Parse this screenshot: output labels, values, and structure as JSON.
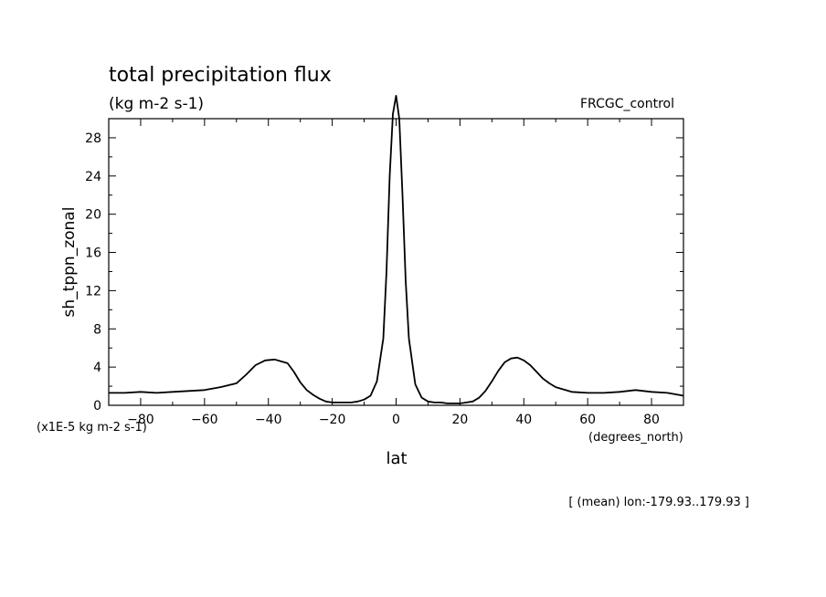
{
  "chart_data": {
    "type": "line",
    "title": "total precipitation flux",
    "subtitle": "(kg m-2 s-1)",
    "run_label": "FRCGC_control",
    "ylabel": "sh_tppn_zonal",
    "y_units": "(x1E-5 kg m-2 s-1)",
    "xlabel": "lat",
    "x_units": "(degrees_north)",
    "footnote": "[ (mean) lon:-179.93..179.93 ]",
    "xlim": [
      -90,
      90
    ],
    "ylim": [
      0,
      30
    ],
    "x_ticks": [
      -80,
      -60,
      -40,
      -20,
      0,
      20,
      40,
      60,
      80
    ],
    "y_ticks": [
      0,
      4,
      8,
      12,
      16,
      20,
      24,
      28
    ],
    "grid": false,
    "series": [
      {
        "x": [
          -90,
          -85,
          -80,
          -75,
          -70,
          -65,
          -60,
          -55,
          -50,
          -47,
          -44,
          -41,
          -38,
          -36,
          -34,
          -32,
          -30,
          -28,
          -26,
          -24,
          -22,
          -20,
          -18,
          -16,
          -14,
          -12,
          -10,
          -8,
          -6,
          -4,
          -3,
          -2,
          -1,
          0,
          1,
          2,
          3,
          4,
          6,
          8,
          10,
          12,
          14,
          16,
          18,
          20,
          22,
          24,
          26,
          28,
          30,
          32,
          34,
          36,
          38,
          40,
          42,
          44,
          46,
          48,
          50,
          55,
          60,
          65,
          70,
          75,
          80,
          85,
          90
        ],
        "y": [
          1.3,
          1.3,
          1.4,
          1.3,
          1.4,
          1.5,
          1.6,
          1.9,
          2.3,
          3.2,
          4.2,
          4.7,
          4.8,
          4.6,
          4.4,
          3.5,
          2.4,
          1.6,
          1.1,
          0.7,
          0.4,
          0.3,
          0.3,
          0.3,
          0.3,
          0.4,
          0.6,
          1.0,
          2.5,
          7.0,
          14.0,
          24.0,
          30.5,
          32.4,
          30.0,
          22.0,
          13.0,
          7.0,
          2.2,
          0.8,
          0.4,
          0.3,
          0.3,
          0.2,
          0.2,
          0.2,
          0.3,
          0.4,
          0.8,
          1.5,
          2.5,
          3.6,
          4.5,
          4.9,
          5.0,
          4.7,
          4.2,
          3.5,
          2.8,
          2.3,
          1.9,
          1.4,
          1.3,
          1.3,
          1.4,
          1.6,
          1.4,
          1.3,
          1.0
        ]
      }
    ]
  }
}
